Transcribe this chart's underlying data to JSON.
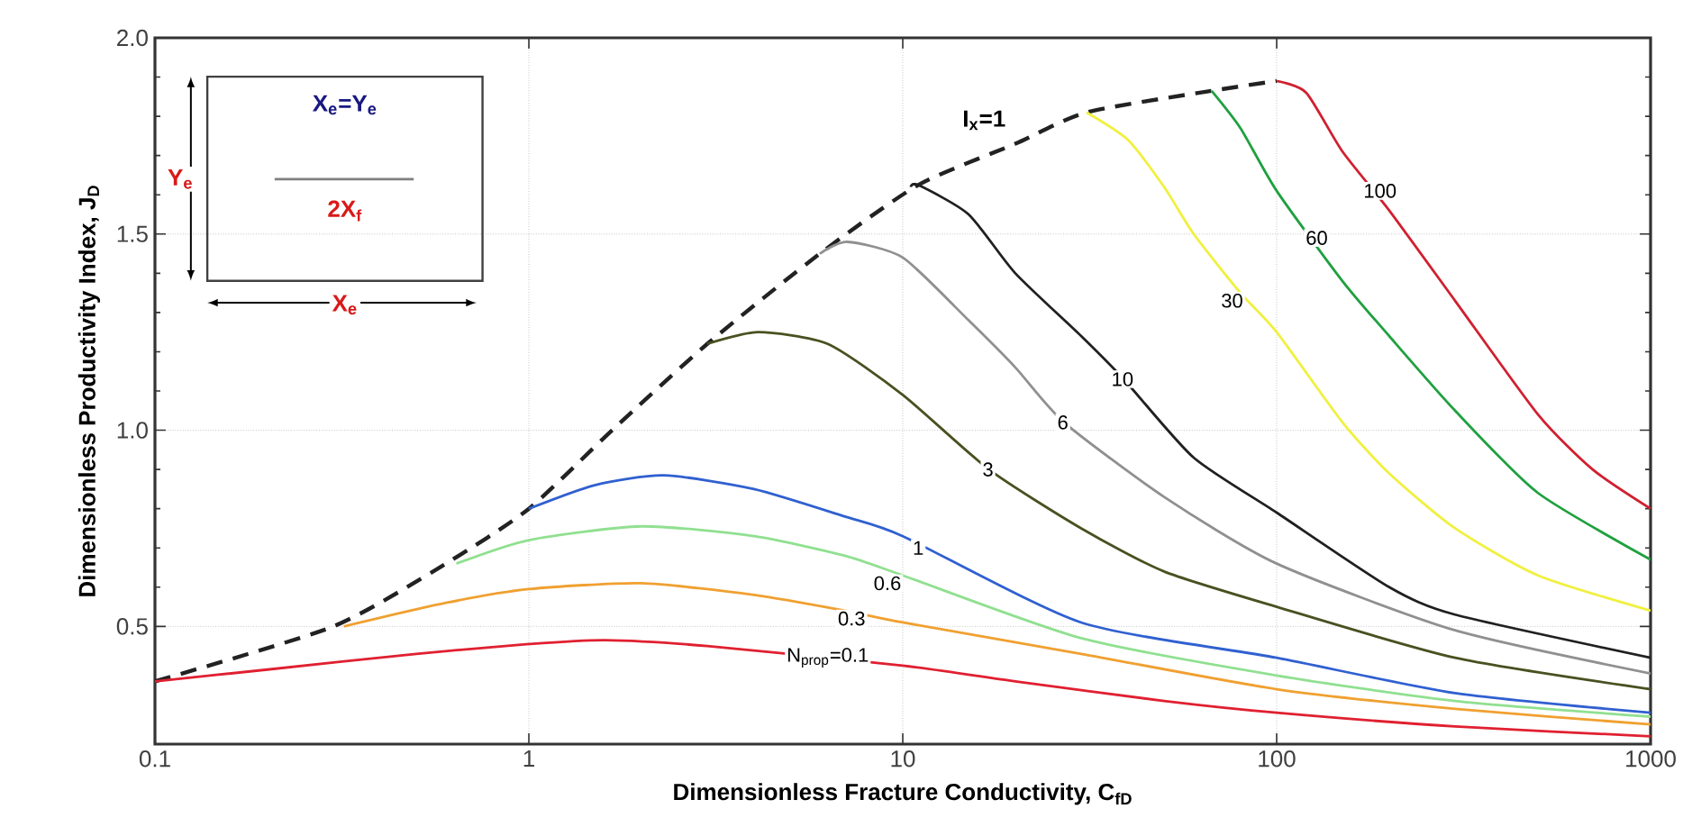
{
  "chart_data": {
    "type": "line",
    "xlabel": "Dimensionless Fracture Conductivity, C$_{fD}$",
    "ylabel": "Dimensionless Productivity Index, J$_{D}$",
    "log": "x",
    "grid": true,
    "xlim": [
      0.1,
      1000
    ],
    "ylim": [
      0.2,
      2.0
    ],
    "xticks": [
      0.1,
      1,
      10,
      100,
      1000
    ],
    "yticks": [
      0.5,
      {
        "value": 1.0,
        "label": "1.0"
      },
      1.5,
      {
        "value": 2.0,
        "label": "2.0"
      }
    ],
    "series": [
      {
        "color": "#222222",
        "line_style": "dashed",
        "x": [
          0.1,
          0.3,
          0.6,
          1,
          1.67,
          3,
          6,
          11,
          20,
          31,
          67,
          100
        ],
        "values": [
          0.36,
          0.5,
          0.66,
          0.8,
          1.0,
          1.22,
          1.45,
          1.625,
          1.73,
          1.81,
          1.865,
          1.89
        ]
      },
      {
        "color": "#e02030",
        "x": [
          0.1,
          0.2,
          0.5,
          1,
          1.6,
          3,
          10,
          20,
          50,
          100,
          300,
          1000
        ],
        "values": [
          0.36,
          0.39,
          0.43,
          0.455,
          0.465,
          0.45,
          0.4,
          0.36,
          0.31,
          0.28,
          0.245,
          0.22
        ]
      },
      {
        "color": "#f0a030",
        "x": [
          0.32,
          0.6,
          1,
          2,
          4,
          7,
          10,
          30,
          100,
          300,
          1000
        ],
        "values": [
          0.5,
          0.56,
          0.595,
          0.61,
          0.58,
          0.54,
          0.51,
          0.43,
          0.34,
          0.29,
          0.25
        ]
      },
      {
        "color": "#90e090",
        "x": [
          0.64,
          1,
          2,
          4,
          7,
          10,
          30,
          100,
          300,
          1000
        ],
        "values": [
          0.66,
          0.72,
          0.755,
          0.73,
          0.68,
          0.63,
          0.47,
          0.375,
          0.31,
          0.27
        ]
      },
      {
        "color": "#3060d0",
        "x": [
          1,
          1.5,
          2.3,
          4,
          7,
          10,
          30,
          100,
          300,
          1000
        ],
        "values": [
          0.8,
          0.86,
          0.885,
          0.85,
          0.78,
          0.73,
          0.51,
          0.42,
          0.33,
          0.28
        ]
      },
      {
        "color": "#4a5020",
        "x": [
          3,
          4.1,
          6.3,
          10,
          17,
          30,
          50,
          100,
          300,
          1000
        ],
        "values": [
          1.22,
          1.25,
          1.22,
          1.09,
          0.9,
          0.75,
          0.64,
          0.55,
          0.42,
          0.34
        ]
      },
      {
        "color": "#909090",
        "x": [
          6,
          7.1,
          10,
          15,
          20,
          27,
          50,
          100,
          300,
          1000
        ],
        "values": [
          1.45,
          1.48,
          1.44,
          1.28,
          1.16,
          1.02,
          0.83,
          0.66,
          0.49,
          0.38
        ]
      },
      {
        "color": "#202020",
        "x": [
          10.5,
          11,
          15,
          20,
          30,
          39,
          60,
          100,
          200,
          300,
          1000
        ],
        "values": [
          1.62,
          1.625,
          1.55,
          1.4,
          1.24,
          1.13,
          0.93,
          0.79,
          0.6,
          0.53,
          0.42
        ]
      },
      {
        "color": "#f0f040",
        "x": [
          31,
          40,
          50,
          60,
          80,
          100,
          150,
          200,
          300,
          500,
          1000
        ],
        "values": [
          1.81,
          1.74,
          1.62,
          1.5,
          1.35,
          1.25,
          1.02,
          0.89,
          0.75,
          0.63,
          0.54
        ]
      },
      {
        "color": "#20a040",
        "x": [
          67,
          80,
          100,
          150,
          200,
          300,
          500,
          1000
        ],
        "values": [
          1.865,
          1.77,
          1.61,
          1.38,
          1.24,
          1.05,
          0.84,
          0.67
        ]
      },
      {
        "color": "#d02030",
        "x": [
          100,
          120,
          150,
          200,
          300,
          500,
          700,
          1000
        ],
        "values": [
          1.89,
          1.86,
          1.71,
          1.56,
          1.33,
          1.04,
          0.9,
          0.8
        ]
      }
    ],
    "annotations": [
      {
        "text": "I$_{x}$=1",
        "x": 16.5,
        "y": 1.79
      },
      {
        "text": "N$_{prop}$=0.1",
        "x": 6.3,
        "y": 0.42
      },
      {
        "text": "0.3",
        "x": 7.3,
        "y": 0.52
      },
      {
        "text": "0.6",
        "x": 9.1,
        "y": 0.61
      },
      {
        "text": "1",
        "x": 11,
        "y": 0.7
      },
      {
        "text": "3",
        "x": 16.9,
        "y": 0.9
      },
      {
        "text": "6",
        "x": 26.8,
        "y": 1.02
      },
      {
        "text": "10",
        "x": 38.7,
        "y": 1.13
      },
      {
        "text": "30",
        "x": 76,
        "y": 1.33
      },
      {
        "text": "60",
        "x": 128,
        "y": 1.49
      },
      {
        "text": "100",
        "x": 189,
        "y": 1.61
      },
      "X$_{e}$=Y$_{e}$",
      "Y$_{e}$",
      "2X$_{f}$",
      "X$_{e}$"
    ]
  }
}
